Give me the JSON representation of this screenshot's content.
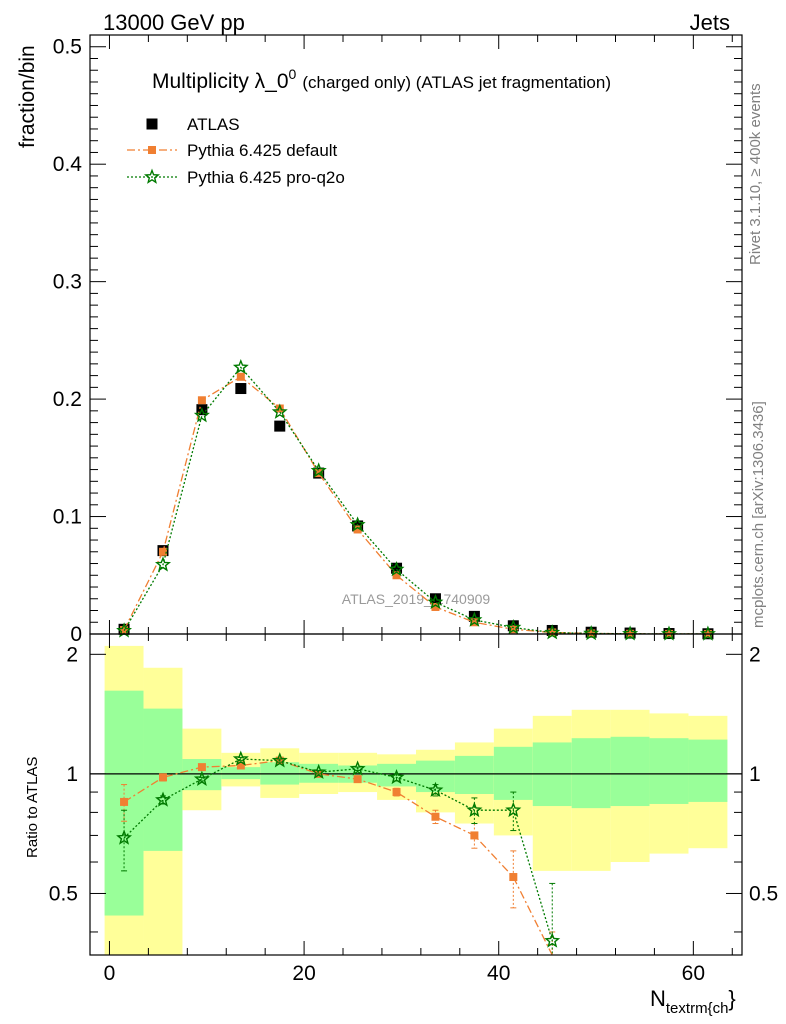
{
  "header": {
    "energy": "13000 GeV pp",
    "category": "Jets",
    "rivet_note": "Rivet 3.1.10, ≥ 400k events",
    "mcplots_note": "mcplots.cern.ch [arXiv:1306.3436]",
    "watermark": "ATLAS_2019_I1740909"
  },
  "chart_data": {
    "type": "scatter",
    "title": {
      "main": "Multiplicity λ_0",
      "sup": "0",
      "rest": "(charged only) (ATLAS jet fragmentation)"
    },
    "xlabel": "N",
    "xlabel_sub": "textrm{ch",
    "xlabel_tail": "}",
    "ylabel": "fraction/bin",
    "ratio_ylabel": "Ratio to ATLAS",
    "xlim": [
      -2,
      65
    ],
    "ylim": [
      0,
      0.51
    ],
    "ratio_ylim": [
      0.35,
      2.25
    ],
    "x_ticks": [
      0,
      20,
      40,
      60
    ],
    "y_ticks": [
      0,
      0.1,
      0.2,
      0.3,
      0.4,
      0.5
    ],
    "y_tick_labels": [
      "0",
      "0.1",
      "0.2",
      "0.3",
      "0.4",
      "0.5"
    ],
    "ratio_ticks": [
      0.5,
      1,
      2
    ],
    "ratio_tick_labels": [
      "0.5",
      "1",
      "2"
    ],
    "legend_position": "top-left",
    "bins": [
      [
        -0.5,
        3.5
      ],
      [
        3.5,
        7.5
      ],
      [
        7.5,
        11.5
      ],
      [
        11.5,
        15.5
      ],
      [
        15.5,
        19.5
      ],
      [
        19.5,
        23.5
      ],
      [
        23.5,
        27.5
      ],
      [
        27.5,
        31.5
      ],
      [
        31.5,
        35.5
      ],
      [
        35.5,
        39.5
      ],
      [
        39.5,
        43.5
      ],
      [
        43.5,
        47.5
      ],
      [
        47.5,
        51.5
      ],
      [
        51.5,
        55.5
      ],
      [
        55.5,
        59.5
      ],
      [
        59.5,
        63.5
      ]
    ],
    "series": [
      {
        "name": "ATLAS",
        "color": "#000000",
        "marker": "square",
        "x": [
          1.5,
          5.5,
          9.5,
          13.5,
          17.5,
          21.5,
          25.5,
          29.5,
          33.5,
          37.5,
          41.5,
          45.5,
          49.5,
          53.5,
          57.5,
          61.5
        ],
        "y": [
          0.004,
          0.071,
          0.191,
          0.209,
          0.177,
          0.137,
          0.092,
          0.056,
          0.03,
          0.015,
          0.007,
          0.003,
          0.0015,
          0.0008,
          0.0004,
          0.0002
        ]
      },
      {
        "name": "Pythia 6.425 default",
        "color": "#f07f32",
        "marker": "square-small",
        "line": "dashdot",
        "x": [
          1.5,
          5.5,
          9.5,
          13.5,
          17.5,
          21.5,
          25.5,
          29.5,
          33.5,
          37.5,
          41.5,
          45.5,
          49.5,
          53.5,
          57.5,
          61.5
        ],
        "y": [
          0.0034,
          0.07,
          0.199,
          0.219,
          0.192,
          0.137,
          0.089,
          0.05,
          0.023,
          0.01,
          0.004,
          0.0013,
          0.0005,
          0.0002,
          0.0001,
          5e-05
        ],
        "ratio": [
          0.85,
          0.98,
          1.04,
          1.05,
          1.08,
          1.0,
          0.97,
          0.9,
          0.78,
          0.7,
          0.55,
          0.3,
          null,
          null,
          null,
          null
        ],
        "ratio_err": [
          0.09,
          0.02,
          0.01,
          0.01,
          0.01,
          0.01,
          0.01,
          0.02,
          0.03,
          0.05,
          0.09,
          0.1,
          null,
          null,
          null,
          null
        ]
      },
      {
        "name": "Pythia 6.425 pro-q2o",
        "color": "#007a00",
        "marker": "star",
        "line": "dotted",
        "x": [
          1.5,
          5.5,
          9.5,
          13.5,
          17.5,
          21.5,
          25.5,
          29.5,
          33.5,
          37.5,
          41.5,
          45.5,
          49.5,
          53.5,
          57.5,
          61.5
        ],
        "y": [
          0.0028,
          0.059,
          0.186,
          0.227,
          0.189,
          0.139,
          0.093,
          0.055,
          0.027,
          0.012,
          0.0055,
          0.0012,
          0.0005,
          0.0002,
          0.0001,
          5e-05
        ],
        "ratio": [
          0.69,
          0.86,
          0.97,
          1.09,
          1.08,
          1.01,
          1.03,
          0.98,
          0.91,
          0.81,
          0.81,
          0.38,
          null,
          null,
          null,
          null
        ],
        "ratio_err": [
          0.12,
          0.02,
          0.01,
          0.01,
          0.01,
          0.01,
          0.01,
          0.02,
          0.03,
          0.06,
          0.09,
          0.15,
          null,
          null,
          null,
          null
        ]
      }
    ],
    "uncertainty_bands": {
      "colors": {
        "inner": "#99ff99",
        "outer": "#ffff99"
      },
      "outer_low": [
        0.35,
        0.35,
        0.81,
        0.93,
        0.87,
        0.89,
        0.9,
        0.86,
        0.8,
        0.75,
        0.7,
        0.57,
        0.57,
        0.6,
        0.63,
        0.65
      ],
      "outer_high": [
        2.1,
        1.85,
        1.3,
        1.13,
        1.16,
        1.13,
        1.13,
        1.12,
        1.15,
        1.2,
        1.3,
        1.4,
        1.45,
        1.45,
        1.42,
        1.4
      ],
      "inner_low": [
        0.44,
        0.64,
        0.91,
        0.97,
        0.94,
        0.95,
        0.95,
        0.93,
        0.9,
        0.89,
        0.86,
        0.83,
        0.82,
        0.83,
        0.84,
        0.85
      ],
      "inner_high": [
        1.62,
        1.46,
        1.09,
        1.04,
        1.07,
        1.06,
        1.05,
        1.06,
        1.08,
        1.11,
        1.17,
        1.2,
        1.23,
        1.24,
        1.23,
        1.22
      ]
    }
  }
}
